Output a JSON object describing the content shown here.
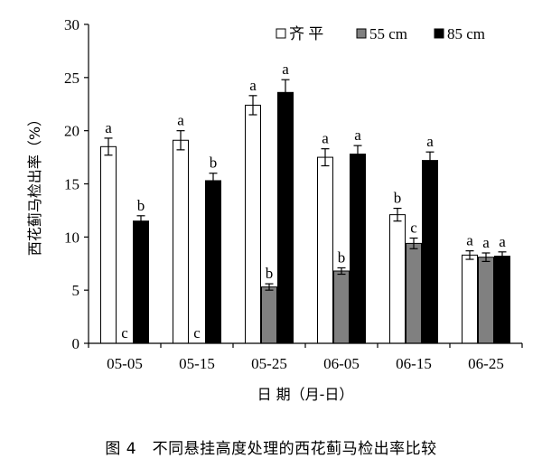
{
  "caption": "图 4　不同悬挂高度处理的西花蓟马检出率比较",
  "chart_data": {
    "type": "bar",
    "title": "",
    "xlabel": "日 期（月-日）",
    "ylabel": "西花蓟马检出率（%）",
    "ylim": [
      0,
      30
    ],
    "yticks": [
      0,
      5,
      10,
      15,
      20,
      25,
      30
    ],
    "categories": [
      "05-05",
      "05-15",
      "05-25",
      "06-05",
      "06-15",
      "06-25"
    ],
    "legend_position": "top-right",
    "grid": false,
    "series": [
      {
        "name": "齐 平",
        "color": "#ffffff",
        "values": [
          18.5,
          19.1,
          22.4,
          17.5,
          12.1,
          8.3
        ],
        "errors": [
          0.8,
          0.9,
          0.9,
          0.8,
          0.6,
          0.4
        ],
        "labels": [
          "a",
          "a",
          "a",
          "a",
          "b",
          "a"
        ]
      },
      {
        "name": "55 cm",
        "color": "#808080",
        "values": [
          0,
          0,
          5.3,
          6.8,
          9.4,
          8.1
        ],
        "errors": [
          0,
          0,
          0.3,
          0.3,
          0.5,
          0.4
        ],
        "labels": [
          "c",
          "c",
          "b",
          "b",
          "c",
          "a"
        ]
      },
      {
        "name": "85 cm",
        "color": "#000000",
        "values": [
          11.5,
          15.3,
          23.6,
          17.8,
          17.2,
          8.2
        ],
        "errors": [
          0.5,
          0.7,
          1.2,
          0.8,
          0.8,
          0.4
        ],
        "labels": [
          "b",
          "b",
          "a",
          "a",
          "a",
          "a"
        ]
      }
    ]
  }
}
